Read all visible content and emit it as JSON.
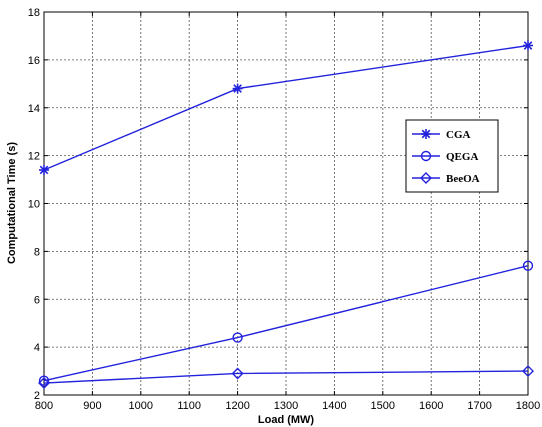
{
  "chart_data": {
    "type": "line",
    "title": "",
    "xlabel": "Load (MW)",
    "ylabel": "Computational Time (s)",
    "xlim": [
      800,
      1800
    ],
    "ylim": [
      2,
      18
    ],
    "xticks": [
      800,
      900,
      1000,
      1100,
      1200,
      1300,
      1400,
      1500,
      1600,
      1700,
      1800
    ],
    "yticks": [
      2,
      4,
      6,
      8,
      10,
      12,
      14,
      16,
      18
    ],
    "grid": true,
    "grid_style": "dotted",
    "legend_position": "right",
    "x": [
      800,
      1200,
      1800
    ],
    "series": [
      {
        "name": "CGA",
        "values": [
          11.4,
          14.8,
          16.6
        ],
        "color": "#2222dd",
        "marker": "star"
      },
      {
        "name": "QEGA",
        "values": [
          2.6,
          4.4,
          7.4
        ],
        "color": "#2222dd",
        "marker": "circle"
      },
      {
        "name": "BeeOA",
        "values": [
          2.5,
          2.9,
          3.0
        ],
        "color": "#2222dd",
        "marker": "diamond"
      }
    ]
  }
}
